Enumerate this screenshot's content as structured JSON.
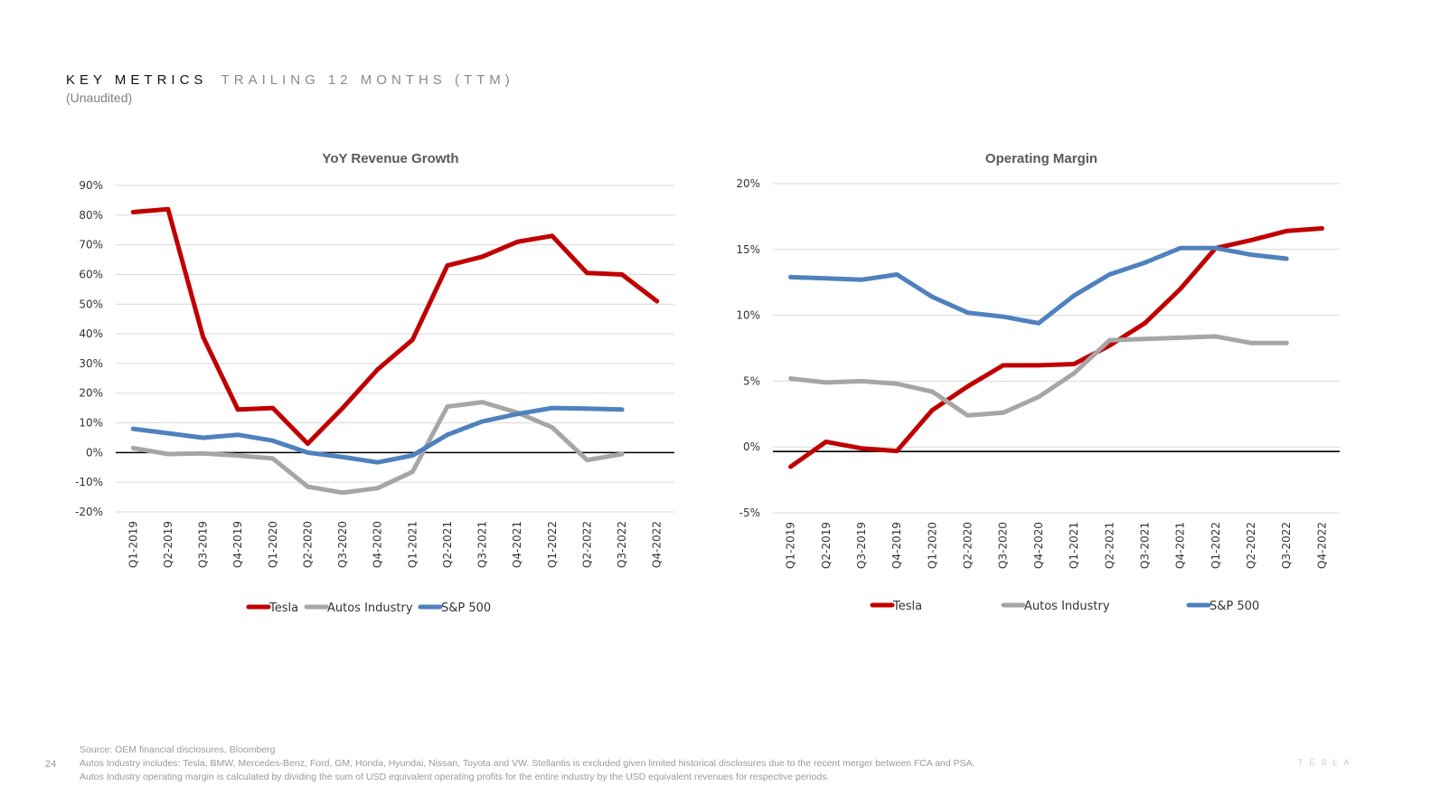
{
  "header": {
    "title": "KEY METRICS",
    "title_suffix": "TRAILING 12 MONTHS (TTM)",
    "subtitle": "(Unaudited)"
  },
  "colors": {
    "tesla": "#C00000",
    "autos": "#A6A6A6",
    "sp500": "#4F81BD"
  },
  "chart_data": [
    {
      "type": "line",
      "title": "YoY Revenue Growth",
      "categories": [
        "Q1-2019",
        "Q2-2019",
        "Q3-2019",
        "Q4-2019",
        "Q1-2020",
        "Q2-2020",
        "Q3-2020",
        "Q4-2020",
        "Q1-2021",
        "Q2-2021",
        "Q3-2021",
        "Q4-2021",
        "Q1-2022",
        "Q2-2022",
        "Q3-2022",
        "Q4-2022"
      ],
      "ylim": [
        -20,
        90
      ],
      "yticks": [
        -20,
        -10,
        0,
        10,
        20,
        30,
        40,
        50,
        60,
        70,
        80,
        90
      ],
      "ytick_labels": [
        "-20%",
        "-10%",
        "0%",
        "10%",
        "20%",
        "30%",
        "40%",
        "50%",
        "60%",
        "70%",
        "80%",
        "90%"
      ],
      "series": [
        {
          "name": "Tesla",
          "color": "#C00000",
          "values": [
            81,
            82,
            39,
            14.5,
            15,
            3,
            15,
            28,
            38,
            63,
            66,
            71,
            73,
            60.5,
            60,
            51
          ]
        },
        {
          "name": "Autos Industry",
          "color": "#A6A6A6",
          "values": [
            1.5,
            -0.5,
            -0.3,
            -1,
            -2,
            -11.5,
            -13.5,
            -12,
            -6.5,
            15.5,
            17,
            13.5,
            8.5,
            -2.5,
            -0.5,
            null
          ]
        },
        {
          "name": "S&P 500",
          "color": "#4F81BD",
          "values": [
            8,
            6.5,
            5,
            6,
            4,
            0,
            -1.5,
            -3.3,
            -1,
            6,
            10.5,
            13,
            15,
            14.8,
            14.5,
            null
          ]
        }
      ]
    },
    {
      "type": "line",
      "title": "Operating Margin",
      "categories": [
        "Q1-2019",
        "Q2-2019",
        "Q3-2019",
        "Q4-2019",
        "Q1-2020",
        "Q2-2020",
        "Q3-2020",
        "Q4-2020",
        "Q1-2021",
        "Q2-2021",
        "Q3-2021",
        "Q4-2021",
        "Q1-2022",
        "Q2-2022",
        "Q3-2022",
        "Q4-2022"
      ],
      "ylim": [
        -5,
        20
      ],
      "yticks": [
        -5,
        0,
        5,
        10,
        15,
        20
      ],
      "ytick_labels": [
        "-5%",
        "0%",
        "5%",
        "10%",
        "15%",
        "20%"
      ],
      "series": [
        {
          "name": "Tesla",
          "color": "#C00000",
          "values": [
            -1.5,
            0.4,
            -0.1,
            -0.3,
            2.8,
            4.6,
            6.2,
            6.2,
            6.3,
            7.7,
            9.4,
            12.0,
            15.1,
            15.7,
            16.4,
            16.6
          ]
        },
        {
          "name": "Autos Industry",
          "color": "#A6A6A6",
          "values": [
            5.2,
            4.9,
            5.0,
            4.8,
            4.2,
            2.4,
            2.6,
            3.8,
            5.6,
            8.1,
            8.2,
            8.3,
            8.4,
            7.9,
            7.9,
            null
          ]
        },
        {
          "name": "S&P 500",
          "color": "#4F81BD",
          "values": [
            12.9,
            12.8,
            12.7,
            13.1,
            11.4,
            10.2,
            9.9,
            9.4,
            11.5,
            13.1,
            14.0,
            15.1,
            15.1,
            14.6,
            14.3,
            null
          ]
        }
      ]
    }
  ],
  "footer": {
    "page_number": "24",
    "lines": [
      "Source: OEM financial disclosures, Bloomberg",
      "Autos Industry includes: Tesla, BMW, Mercedes-Benz, Ford, GM, Honda, Hyundai, Nissan, Toyota and VW. Stellantis is excluded given limited historical disclosures due to the recent merger between FCA and PSA.",
      "Autos Industry operating margin is calculated by dividing the sum of USD equivalent operating profits for the entire industry by the USD equivalent revenues for respective periods."
    ],
    "logo": "TESLA"
  }
}
